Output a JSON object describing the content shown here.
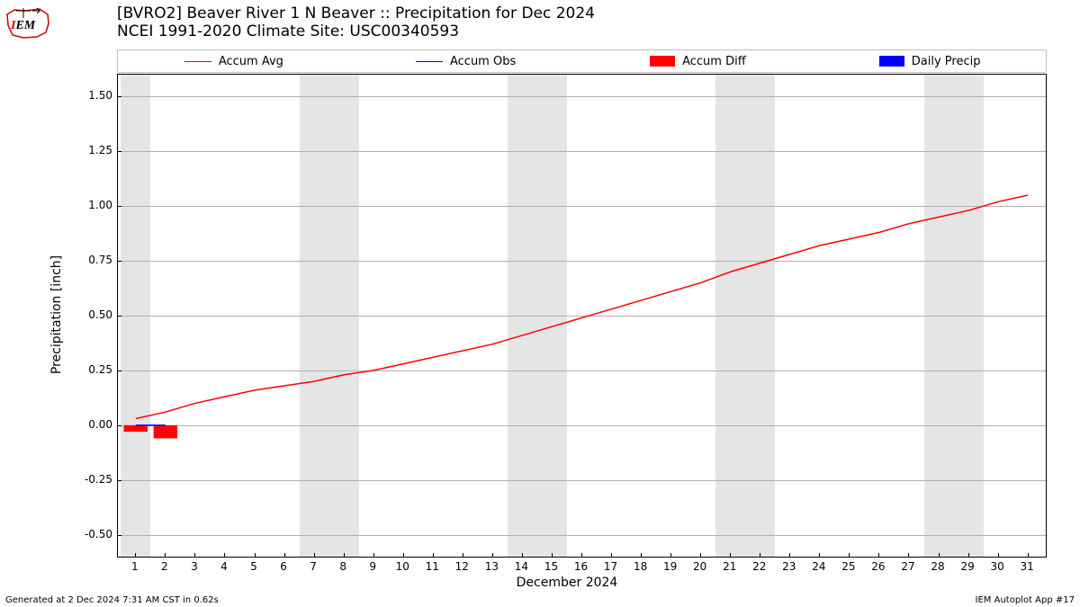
{
  "logo": {
    "text": "IEM",
    "color_i": "#cc0000",
    "color_em": "#000000",
    "outline": "#cc0000"
  },
  "titles": {
    "main": "[BVRO2] Beaver River 1 N Beaver :: Precipitation for Dec 2024",
    "sub": "NCEI 1991-2020 Climate Site: USC00340593"
  },
  "legend": {
    "items": [
      {
        "label": "Accum Avg",
        "type": "line",
        "color": "#ff0000"
      },
      {
        "label": "Accum Obs",
        "type": "line",
        "color": "#0000ff"
      },
      {
        "label": "Accum Diff",
        "type": "patch",
        "color": "#ff0000"
      },
      {
        "label": "Daily Precip",
        "type": "patch",
        "color": "#0000ff"
      }
    ]
  },
  "chart": {
    "type": "line",
    "background_color": "#ffffff",
    "weekend_band_color": "#e5e5e5",
    "grid_color": "#b0b0b0",
    "border_color": "#000000",
    "xlim": [
      0.4,
      31.6
    ],
    "ylim": [
      -0.6,
      1.6
    ],
    "xtick_start": 1,
    "xtick_end": 31,
    "xtick_step": 1,
    "ytick_start": -0.5,
    "ytick_end": 1.5,
    "ytick_step": 0.25,
    "ylabel": "Precipitation [inch]",
    "xlabel": "December 2024",
    "label_fontsize": 14,
    "tick_fontsize": 12,
    "weekend_days": [
      1,
      7,
      8,
      14,
      15,
      21,
      22,
      28,
      29
    ],
    "series_accum_avg": {
      "color": "#ff0000",
      "linewidth": 1.5,
      "x": [
        1,
        2,
        3,
        4,
        5,
        6,
        7,
        8,
        9,
        10,
        11,
        12,
        13,
        14,
        15,
        16,
        17,
        18,
        19,
        20,
        21,
        22,
        23,
        24,
        25,
        26,
        27,
        28,
        29,
        30,
        31
      ],
      "y": [
        0.03,
        0.06,
        0.1,
        0.13,
        0.16,
        0.18,
        0.2,
        0.23,
        0.25,
        0.28,
        0.31,
        0.34,
        0.37,
        0.41,
        0.45,
        0.49,
        0.53,
        0.57,
        0.61,
        0.65,
        0.7,
        0.74,
        0.78,
        0.82,
        0.85,
        0.88,
        0.92,
        0.95,
        0.98,
        1.02,
        1.05
      ]
    },
    "series_accum_obs": {
      "color": "#0000ff",
      "linewidth": 1.5,
      "x": [
        1,
        2
      ],
      "y": [
        0.0,
        0.0
      ]
    },
    "bars_accum_diff": {
      "color": "#ff0000",
      "bar_width": 0.8,
      "x": [
        1,
        2
      ],
      "y": [
        -0.03,
        -0.06
      ]
    },
    "bars_daily_precip": {
      "color": "#0000ff",
      "bar_width": 0.8,
      "x": [],
      "y": []
    }
  },
  "footer": {
    "left": "Generated at 2 Dec 2024 7:31 AM CST in 0.62s",
    "right": "IEM Autoplot App #17"
  }
}
